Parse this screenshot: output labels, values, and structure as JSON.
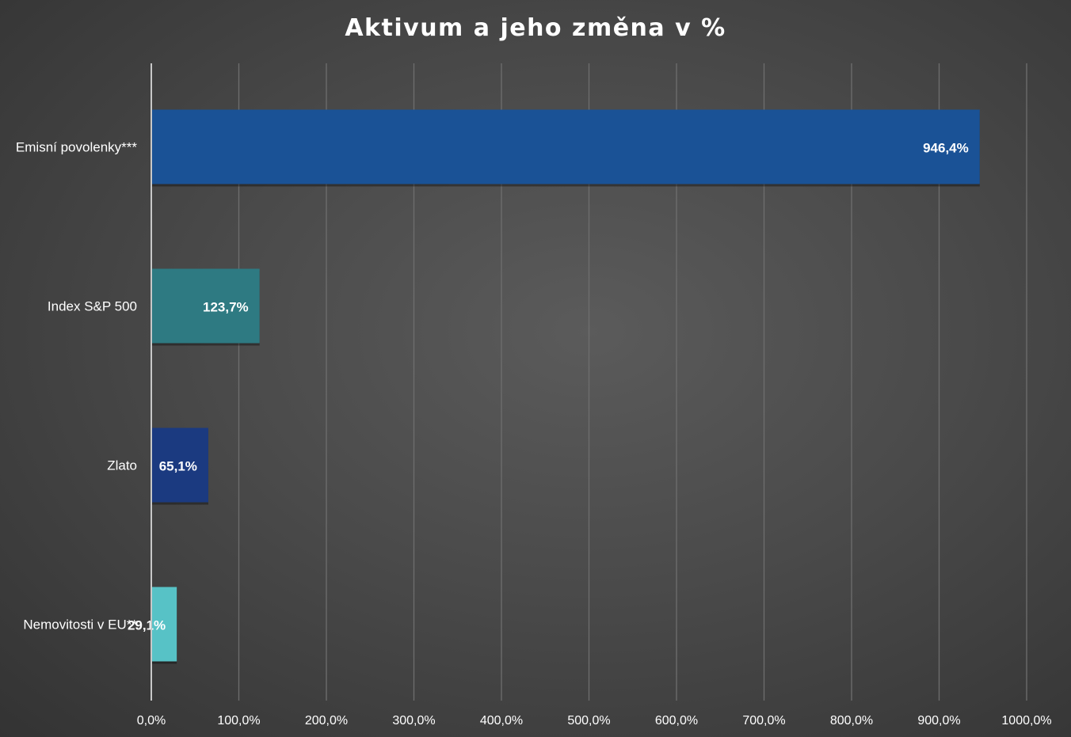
{
  "chart_data": {
    "type": "bar",
    "orientation": "horizontal",
    "title": "Aktivum a jeho změna v %",
    "categories": [
      "Emisní povolenky***",
      "Index S&P 500",
      "Zlato",
      "Nemovitosti v EU**"
    ],
    "values": [
      946.4,
      123.7,
      65.1,
      29.1
    ],
    "data_labels": [
      "946,4%",
      "123,7%",
      "65,1%",
      "29,1%"
    ],
    "bar_colors": [
      "#1a5296",
      "#2e7a82",
      "#1b3a80",
      "#57c2c6"
    ],
    "xlim": [
      0,
      1000
    ],
    "x_ticks": [
      0,
      100,
      200,
      300,
      400,
      500,
      600,
      700,
      800,
      900,
      1000
    ],
    "x_tick_labels": [
      "0,0%",
      "100,0%",
      "200,0%",
      "300,0%",
      "400,0%",
      "500,0%",
      "600,0%",
      "700,0%",
      "800,0%",
      "900,0%",
      "1000,0%"
    ],
    "grid": true,
    "legend": "none",
    "xlabel": "",
    "ylabel": ""
  }
}
